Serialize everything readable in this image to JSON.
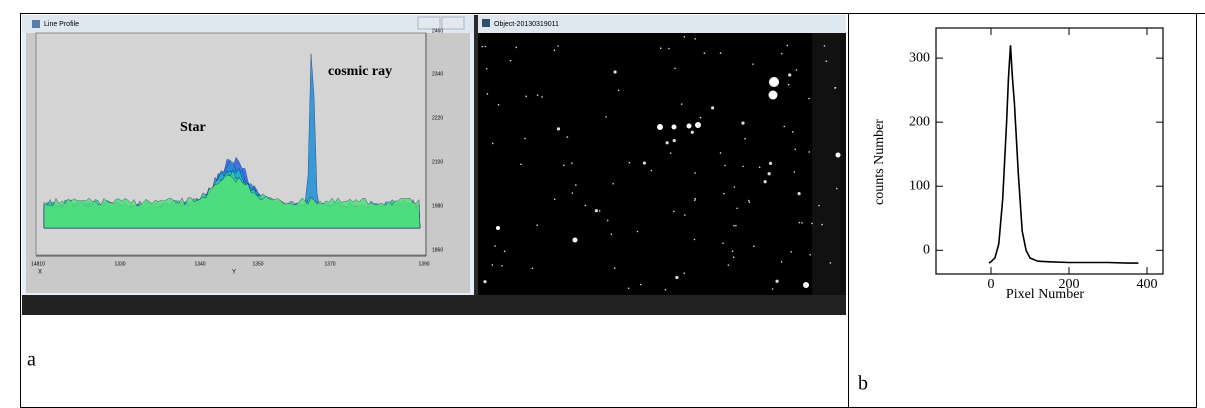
{
  "panel_a": {
    "label": "a",
    "profile_window": {
      "title": "Line Profile",
      "annotations": [
        "Star",
        "cosmic ray"
      ],
      "right_axis_labels": [
        "2460",
        "2340",
        "2220",
        "2100",
        "1980",
        "1860"
      ],
      "bottom_axis_labels": [
        "14810",
        "1330",
        "1340",
        "1350",
        "1370",
        "1390"
      ],
      "axis_names": [
        "X",
        "Y"
      ]
    },
    "image_window": {
      "title": "Object-20130319011"
    }
  },
  "chart_data": {
    "type": "line",
    "label": "b",
    "xlabel": "Pixel Number",
    "ylabel": "counts Number",
    "x": [
      -5,
      0,
      10,
      20,
      30,
      40,
      45,
      50,
      55,
      60,
      70,
      80,
      90,
      100,
      120,
      150,
      200,
      250,
      300,
      350,
      378
    ],
    "series": [
      {
        "color": "#000000",
        "values": [
          -20,
          -18,
          -12,
          10,
          80,
          200,
          270,
          320,
          270,
          230,
          120,
          30,
          0,
          -12,
          -17,
          -18,
          -19,
          -19,
          -19,
          -20,
          -20
        ]
      }
    ],
    "xlim": [
      -141,
      441
    ],
    "ylim": [
      -37,
      347
    ],
    "xticks": [
      0,
      200,
      400
    ],
    "yticks": [
      0,
      100,
      200,
      300
    ],
    "grid": false
  }
}
